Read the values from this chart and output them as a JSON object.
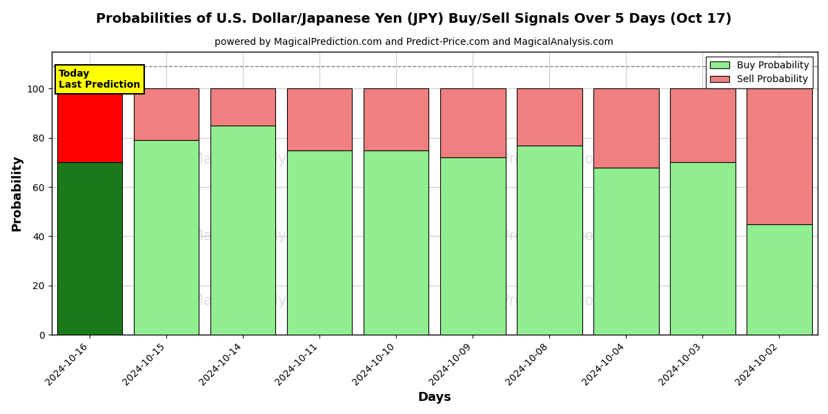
{
  "title": "Probabilities of U.S. Dollar/Japanese Yen (JPY) Buy/Sell Signals Over 5 Days (Oct 17)",
  "subtitle": "powered by MagicalPrediction.com and Predict-Price.com and MagicalAnalysis.com",
  "xlabel": "Days",
  "ylabel": "Probability",
  "categories": [
    "2024-10-16",
    "2024-10-15",
    "2024-10-14",
    "2024-10-11",
    "2024-10-10",
    "2024-10-09",
    "2024-10-08",
    "2024-10-04",
    "2024-10-03",
    "2024-10-02"
  ],
  "buy_values": [
    70,
    79,
    85,
    75,
    75,
    72,
    77,
    68,
    70,
    45
  ],
  "sell_values": [
    30,
    21,
    15,
    25,
    25,
    28,
    23,
    32,
    30,
    55
  ],
  "buy_color_today": "#1a7a1a",
  "sell_color_today": "#ff0000",
  "buy_color_normal": "#90ee90",
  "sell_color_normal": "#f08080",
  "annotation_bg_color": "#ffff00",
  "annotation_text": "Today\nLast Prediction",
  "ylim_max": 115,
  "yticks": [
    0,
    20,
    40,
    60,
    80,
    100
  ],
  "legend_buy_label": "Buy Probability",
  "legend_sell_label": "Sell Probability",
  "dashed_line_y": 109,
  "bar_width": 0.85,
  "fig_width": 12,
  "fig_height": 6,
  "facecolor": "#ffffff",
  "grid_color": "#cccccc"
}
